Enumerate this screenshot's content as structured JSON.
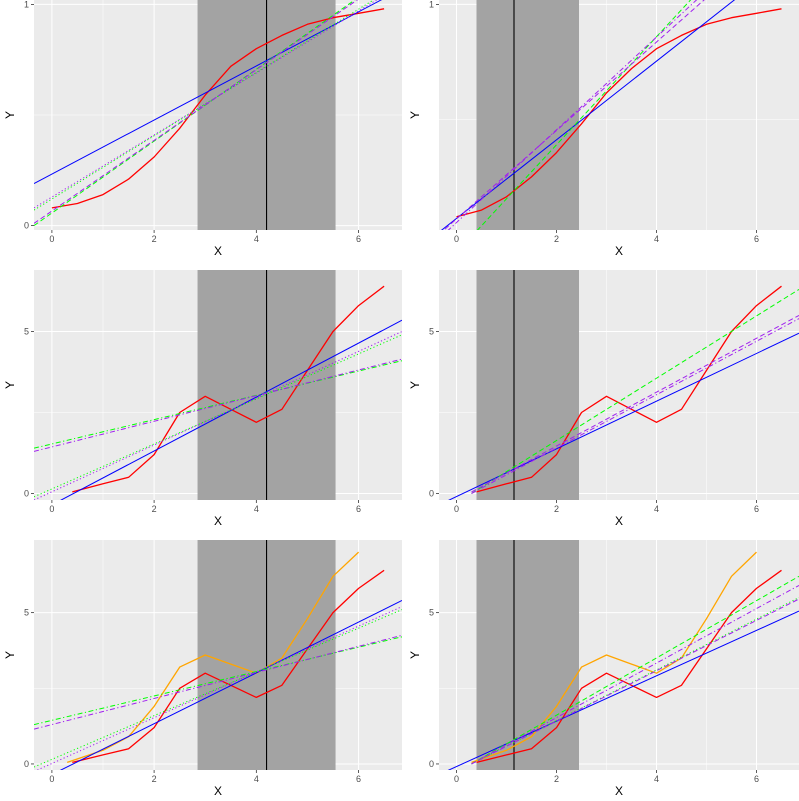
{
  "chart_data": [
    {
      "type": "line",
      "xlabel": "X",
      "ylabel": "Y",
      "xlim": [
        -0.35,
        6.85
      ],
      "ylim": [
        -0.02,
        1.02
      ],
      "xticks": [
        "0",
        "2",
        "4",
        "6"
      ],
      "xtick_values": [
        0,
        2,
        4,
        6
      ],
      "yticks": [
        "0",
        "1"
      ],
      "ytick_values": [
        0,
        1
      ],
      "shaded_band": [
        2.85,
        5.55
      ],
      "vline": 4.2,
      "series": [
        {
          "color": "#ff0000",
          "style": "solid",
          "x": [
            0,
            0.5,
            1,
            1.5,
            2,
            2.5,
            3,
            3.5,
            4,
            4.5,
            5,
            5.5,
            6,
            6.5
          ],
          "y": [
            0.08,
            0.1,
            0.14,
            0.21,
            0.31,
            0.44,
            0.59,
            0.72,
            0.8,
            0.86,
            0.91,
            0.94,
            0.96,
            0.98
          ]
        },
        {
          "color": "#0000ff",
          "style": "solid",
          "x": [
            -0.35,
            6.85
          ],
          "y": [
            0.19,
            1.07
          ]
        },
        {
          "color": "#00ff00",
          "style": "dotted",
          "x": [
            -0.35,
            6.85
          ],
          "y": [
            0.07,
            1.1
          ]
        },
        {
          "color": "#a020f0",
          "style": "dotted",
          "x": [
            -0.35,
            6.85
          ],
          "y": [
            0.08,
            1.09
          ]
        },
        {
          "color": "#00ff00",
          "style": "dashed",
          "x": [
            -0.35,
            6.85
          ],
          "y": [
            0.0,
            1.17
          ]
        },
        {
          "color": "#a020f0",
          "style": "dashed",
          "x": [
            -0.35,
            6.85
          ],
          "y": [
            0.01,
            1.16
          ]
        }
      ]
    },
    {
      "type": "line",
      "xlabel": "X",
      "ylabel": "Y",
      "xlim": [
        -0.35,
        6.85
      ],
      "ylim": [
        -0.02,
        1.02
      ],
      "xticks": [
        "0",
        "2",
        "4",
        "6"
      ],
      "xtick_values": [
        0,
        2,
        4,
        6
      ],
      "yticks": [
        "1"
      ],
      "ytick_values": [
        1
      ],
      "shaded_band": [
        0.4,
        2.45
      ],
      "vline": 1.15,
      "series": [
        {
          "color": "#ff0000",
          "style": "solid",
          "x": [
            0,
            0.5,
            1,
            1.5,
            2,
            2.5,
            3,
            3.5,
            4,
            4.5,
            5,
            5.5,
            6,
            6.5
          ],
          "y": [
            0.04,
            0.07,
            0.13,
            0.22,
            0.33,
            0.46,
            0.6,
            0.71,
            0.8,
            0.86,
            0.91,
            0.94,
            0.96,
            0.98
          ]
        },
        {
          "color": "#0000ff",
          "style": "solid",
          "x": [
            -0.35,
            6.85
          ],
          "y": [
            -0.03,
            1.25
          ]
        },
        {
          "color": "#00ff00",
          "style": "dashed",
          "x": [
            0.3,
            6.85
          ],
          "y": [
            -0.05,
            1.55
          ]
        },
        {
          "color": "#a020f0",
          "style": "dashed",
          "x": [
            -0.35,
            6.85
          ],
          "y": [
            -0.04,
            1.4
          ]
        },
        {
          "color": "#a020f0",
          "style": "dashdot",
          "x": [
            -0.35,
            6.85
          ],
          "y": [
            -0.06,
            1.45
          ]
        }
      ]
    },
    {
      "type": "line",
      "xlabel": "X",
      "ylabel": "Y",
      "xlim": [
        -0.35,
        6.85
      ],
      "ylim": [
        -0.2,
        6.9
      ],
      "xticks": [
        "0",
        "2",
        "4",
        "6"
      ],
      "xtick_values": [
        0,
        2,
        4,
        6
      ],
      "yticks": [
        "0",
        "5"
      ],
      "ytick_values": [
        0,
        5
      ],
      "shaded_band": [
        2.85,
        5.55
      ],
      "vline": 4.2,
      "series": [
        {
          "color": "#ff0000",
          "style": "solid",
          "x": [
            0.4,
            1,
            1.5,
            2,
            2.5,
            3,
            3.5,
            4,
            4.5,
            5,
            5.5,
            6,
            6.5
          ],
          "y": [
            0.05,
            0.3,
            0.5,
            1.2,
            2.5,
            3.0,
            2.6,
            2.2,
            2.6,
            3.8,
            5.0,
            5.8,
            6.4
          ]
        },
        {
          "color": "#0000ff",
          "style": "solid",
          "x": [
            0,
            6.85
          ],
          "y": [
            -0.35,
            5.35
          ]
        },
        {
          "color": "#00ff00",
          "style": "dotted",
          "x": [
            -0.35,
            6.85
          ],
          "y": [
            -0.1,
            4.9
          ]
        },
        {
          "color": "#a020f0",
          "style": "dotted",
          "x": [
            -0.35,
            6.85
          ],
          "y": [
            -0.2,
            5.0
          ]
        },
        {
          "color": "#00ff00",
          "style": "dashdot",
          "x": [
            -0.35,
            6.85
          ],
          "y": [
            1.4,
            4.1
          ]
        },
        {
          "color": "#a020f0",
          "style": "dashdot",
          "x": [
            -0.35,
            6.85
          ],
          "y": [
            1.3,
            4.15
          ]
        }
      ]
    },
    {
      "type": "line",
      "xlabel": "X",
      "ylabel": "Y",
      "xlim": [
        -0.35,
        6.85
      ],
      "ylim": [
        -0.2,
        6.9
      ],
      "xticks": [
        "0",
        "2",
        "4",
        "6"
      ],
      "xtick_values": [
        0,
        2,
        4,
        6
      ],
      "yticks": [
        "0",
        "5"
      ],
      "ytick_values": [
        0,
        5
      ],
      "shaded_band": [
        0.4,
        2.45
      ],
      "vline": 1.15,
      "series": [
        {
          "color": "#ff0000",
          "style": "solid",
          "x": [
            0.4,
            1,
            1.5,
            2,
            2.5,
            3,
            3.5,
            4,
            4.5,
            5,
            5.5,
            6,
            6.5
          ],
          "y": [
            0.05,
            0.3,
            0.5,
            1.2,
            2.5,
            3.0,
            2.6,
            2.2,
            2.6,
            3.8,
            5.0,
            5.8,
            6.4
          ]
        },
        {
          "color": "#0000ff",
          "style": "solid",
          "x": [
            -0.35,
            6.85
          ],
          "y": [
            -0.35,
            4.95
          ]
        },
        {
          "color": "#00ff00",
          "style": "dashed",
          "x": [
            0.3,
            6.85
          ],
          "y": [
            0.0,
            6.3
          ]
        },
        {
          "color": "#a020f0",
          "style": "dashed",
          "x": [
            0.3,
            6.85
          ],
          "y": [
            0.05,
            5.5
          ]
        },
        {
          "color": "#a020f0",
          "style": "dashdot",
          "x": [
            0.3,
            6.85
          ],
          "y": [
            0.0,
            5.4
          ]
        }
      ]
    },
    {
      "type": "line",
      "xlabel": "X",
      "ylabel": "Y",
      "xlim": [
        -0.35,
        6.85
      ],
      "ylim": [
        -0.2,
        7.4
      ],
      "xticks": [
        "0",
        "2",
        "4",
        "6"
      ],
      "xtick_values": [
        0,
        2,
        4,
        6
      ],
      "yticks": [
        "0",
        "5"
      ],
      "ytick_values": [
        0,
        5
      ],
      "shaded_band": [
        2.85,
        5.55
      ],
      "vline": 4.2,
      "series": [
        {
          "color": "#ffa500",
          "style": "solid",
          "x": [
            0.3,
            1,
            1.5,
            2,
            2.5,
            3,
            3.5,
            4,
            4.5,
            5,
            5.5,
            6
          ],
          "y": [
            0.05,
            0.45,
            0.9,
            1.9,
            3.2,
            3.6,
            3.3,
            3.0,
            3.5,
            4.8,
            6.2,
            7.0
          ]
        },
        {
          "color": "#ff0000",
          "style": "solid",
          "x": [
            0.4,
            1,
            1.5,
            2,
            2.5,
            3,
            3.5,
            4,
            4.5,
            5,
            5.5,
            6,
            6.5
          ],
          "y": [
            0.05,
            0.3,
            0.5,
            1.2,
            2.5,
            3.0,
            2.6,
            2.2,
            2.6,
            3.8,
            5.0,
            5.8,
            6.4
          ]
        },
        {
          "color": "#0000ff",
          "style": "solid",
          "x": [
            0,
            6.85
          ],
          "y": [
            -0.35,
            5.4
          ]
        },
        {
          "color": "#00ff00",
          "style": "dotted",
          "x": [
            -0.35,
            6.85
          ],
          "y": [
            -0.1,
            5.1
          ]
        },
        {
          "color": "#a020f0",
          "style": "dotted",
          "x": [
            -0.35,
            6.85
          ],
          "y": [
            -0.25,
            5.2
          ]
        },
        {
          "color": "#00ff00",
          "style": "dashdot",
          "x": [
            -0.35,
            6.85
          ],
          "y": [
            1.3,
            4.2
          ]
        },
        {
          "color": "#a020f0",
          "style": "dashdot",
          "x": [
            -0.35,
            6.85
          ],
          "y": [
            1.15,
            4.25
          ]
        }
      ]
    },
    {
      "type": "line",
      "xlabel": "X",
      "ylabel": "Y",
      "xlim": [
        -0.35,
        6.85
      ],
      "ylim": [
        -0.2,
        7.4
      ],
      "xticks": [
        "0",
        "2",
        "4",
        "6"
      ],
      "xtick_values": [
        0,
        2,
        4,
        6
      ],
      "yticks": [
        "0",
        "5"
      ],
      "ytick_values": [
        0,
        5
      ],
      "shaded_band": [
        0.4,
        2.45
      ],
      "vline": 1.15,
      "series": [
        {
          "color": "#ffa500",
          "style": "solid",
          "x": [
            0.3,
            1,
            1.5,
            2,
            2.5,
            3,
            3.5,
            4,
            4.5,
            5,
            5.5,
            6
          ],
          "y": [
            0.05,
            0.45,
            0.9,
            1.9,
            3.2,
            3.6,
            3.3,
            3.0,
            3.5,
            4.8,
            6.2,
            7.0
          ]
        },
        {
          "color": "#ff0000",
          "style": "solid",
          "x": [
            0.4,
            1,
            1.5,
            2,
            2.5,
            3,
            3.5,
            4,
            4.5,
            5,
            5.5,
            6,
            6.5
          ],
          "y": [
            0.05,
            0.3,
            0.5,
            1.2,
            2.5,
            3.0,
            2.6,
            2.2,
            2.6,
            3.8,
            5.0,
            5.8,
            6.4
          ]
        },
        {
          "color": "#0000ff",
          "style": "solid",
          "x": [
            -0.35,
            6.85
          ],
          "y": [
            -0.35,
            5.05
          ]
        },
        {
          "color": "#00ff00",
          "style": "dashed",
          "x": [
            0.3,
            6.85
          ],
          "y": [
            0.0,
            6.2
          ]
        },
        {
          "color": "#00ff00",
          "style": "dotted",
          "x": [
            0.3,
            6.85
          ],
          "y": [
            0.0,
            5.5
          ]
        },
        {
          "color": "#a020f0",
          "style": "dashdot",
          "x": [
            0.3,
            6.85
          ],
          "y": [
            0.0,
            5.9
          ]
        },
        {
          "color": "#a020f0",
          "style": "dashed",
          "x": [
            0.3,
            6.85
          ],
          "y": [
            0.0,
            5.45
          ]
        }
      ]
    }
  ]
}
